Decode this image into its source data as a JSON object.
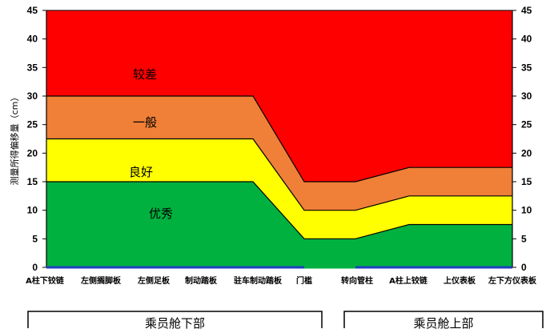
{
  "chart_data": {
    "type": "area",
    "categories": [
      "A柱下铰链",
      "左侧搁脚板",
      "左侧足板",
      "制动踏板",
      "驻车制动踏板",
      "门槛",
      "转向管柱",
      "A柱上铰链",
      "上仪表板",
      "左下方仪表板"
    ],
    "ylabel": "测量所得偏移量（cm）",
    "ylim": [
      0,
      45
    ],
    "yticks": [
      0,
      5,
      10,
      15,
      20,
      25,
      30,
      35,
      40,
      45
    ],
    "grid": false,
    "zones": [
      {
        "label": "优秀",
        "color": "#00b140",
        "upper": [
          15,
          15,
          15,
          15,
          15,
          5,
          5,
          7.5,
          7.5,
          7.5
        ]
      },
      {
        "label": "良好",
        "color": "#ffff00",
        "upper": [
          22.5,
          22.5,
          22.5,
          22.5,
          22.5,
          10,
          10,
          12.5,
          12.5,
          12.5
        ]
      },
      {
        "label": "一般",
        "color": "#f07f37",
        "upper": [
          30,
          30,
          30,
          30,
          30,
          15,
          15,
          17.5,
          17.5,
          17.5
        ]
      },
      {
        "label": "较差",
        "color": "#ff0000",
        "upper": [
          45,
          45,
          45,
          45,
          45,
          45,
          45,
          45,
          45,
          45
        ]
      }
    ],
    "groups": [
      {
        "label": "乘员舱下部"
      },
      {
        "label": "乘员舱上部"
      }
    ]
  }
}
